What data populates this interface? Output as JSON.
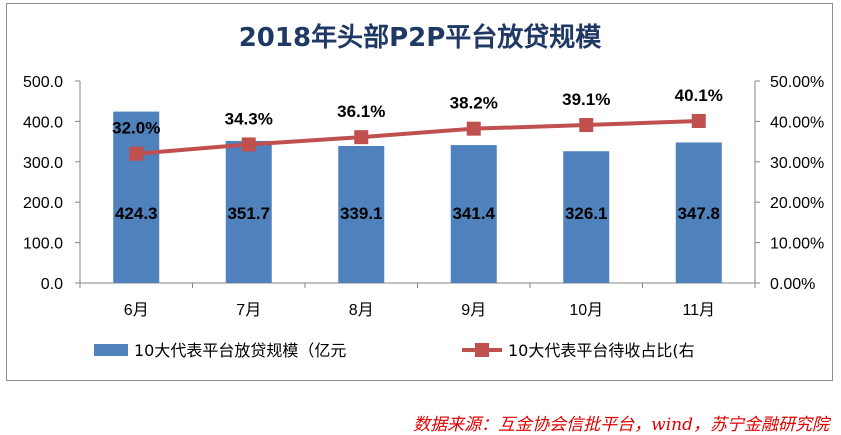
{
  "chart_data": {
    "type": "bar",
    "title": "2018年头部P2P平台放贷规模",
    "categories": [
      "6月",
      "7月",
      "8月",
      "9月",
      "10月",
      "11月"
    ],
    "series": [
      {
        "name": "10大代表平台放贷规模（亿元",
        "type": "bar",
        "axis": "left",
        "color": "#4f81bd",
        "values": [
          424.3,
          351.7,
          339.1,
          341.4,
          326.1,
          347.8
        ],
        "labels": [
          "424.3",
          "351.7",
          "339.1",
          "341.4",
          "326.1",
          "347.8"
        ]
      },
      {
        "name": "10大代表平台待收占比(右",
        "type": "line",
        "axis": "right",
        "color": "#c0504d",
        "values": [
          32.0,
          34.3,
          36.1,
          38.2,
          39.1,
          40.1
        ],
        "labels": [
          "32.0%",
          "34.3%",
          "36.1%",
          "38.2%",
          "39.1%",
          "40.1%"
        ]
      }
    ],
    "y_left": {
      "min": 0,
      "max": 500,
      "ticks": [
        "0.0",
        "100.0",
        "200.0",
        "300.0",
        "400.0",
        "500.0"
      ]
    },
    "y_right": {
      "min": 0,
      "max": 50,
      "ticks": [
        "0.00%",
        "10.00%",
        "20.00%",
        "30.00%",
        "40.00%",
        "50.00%"
      ]
    },
    "grid": false,
    "legend_position": "bottom"
  },
  "source_note": "数据来源：互金协会信批平台，wind，苏宁金融研究院"
}
